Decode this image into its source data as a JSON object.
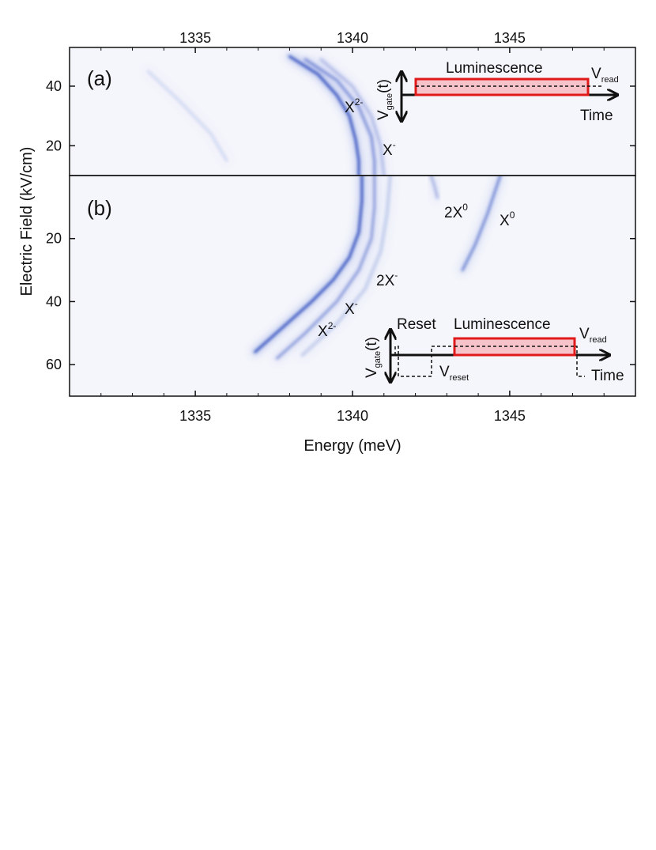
{
  "chart_data": {
    "type": "heatmap",
    "x_axis": {
      "label": "Energy (meV)",
      "range": [
        1331,
        1349
      ],
      "ticks": [
        1335,
        1340,
        1345
      ],
      "tick_labels": [
        "1335",
        "1340",
        "1345"
      ]
    },
    "y_axis": {
      "label": "Electric Field (kV/cm)"
    },
    "colormap": "white-to-blue (PL intensity)",
    "panels": [
      {
        "label": "(a)",
        "y_range": [
          10,
          53
        ],
        "y_direction": "up",
        "y_ticks": [
          20,
          40
        ],
        "y_tick_labels": [
          "20",
          "40"
        ],
        "peaks": [
          {
            "name": "X2-",
            "text": "X",
            "sup": "2-"
          },
          {
            "name": "X-",
            "text": "X",
            "sup": "-"
          }
        ],
        "streaks": [
          {
            "peak": "X2-",
            "points": [
              [
                1338.0,
                50
              ],
              [
                1338.9,
                44
              ],
              [
                1339.5,
                37
              ],
              [
                1339.9,
                30
              ],
              [
                1340.1,
                22
              ],
              [
                1340.2,
                15
              ],
              [
                1340.2,
                10
              ]
            ],
            "intensity": 0.95
          },
          {
            "peak": "X2-",
            "points": [
              [
                1338.5,
                49
              ],
              [
                1339.5,
                42
              ],
              [
                1340.2,
                33
              ],
              [
                1340.6,
                23
              ],
              [
                1340.7,
                15
              ],
              [
                1340.7,
                10
              ]
            ],
            "intensity": 0.55
          },
          {
            "peak": "X-",
            "points": [
              [
                1339.0,
                49
              ],
              [
                1340.0,
                40
              ],
              [
                1340.6,
                30
              ],
              [
                1340.9,
                20
              ],
              [
                1341.0,
                10
              ]
            ],
            "intensity": 0.3
          },
          {
            "peak": "faint",
            "points": [
              [
                1333.5,
                45
              ],
              [
                1334.5,
                35
              ],
              [
                1335.5,
                24
              ],
              [
                1336.0,
                15
              ]
            ],
            "intensity": 0.15
          }
        ],
        "inset": {
          "axis_label": "V",
          "axis_label_sub": "gate",
          "axis_label_suffix": "(t)",
          "time_label": "Time",
          "pulse_label": "Luminescence",
          "level_label": "V",
          "level_label_sub": "read"
        }
      },
      {
        "label": "(b)",
        "y_range": [
          0,
          70
        ],
        "y_direction": "down",
        "y_ticks": [
          20,
          40,
          60
        ],
        "y_tick_labels": [
          "20",
          "40",
          "60"
        ],
        "peaks": [
          {
            "name": "2X0",
            "text": "2X",
            "sup": "0"
          },
          {
            "name": "X0",
            "text": "X",
            "sup": "0"
          },
          {
            "name": "2X-",
            "text": "2X",
            "sup": "-"
          },
          {
            "name": "X-",
            "text": "X",
            "sup": "-"
          },
          {
            "name": "X2-",
            "text": "X",
            "sup": "2-"
          }
        ],
        "streaks": [
          {
            "peak": "X2-",
            "points": [
              [
                1336.9,
                56
              ],
              [
                1337.8,
                48
              ],
              [
                1338.7,
                40
              ],
              [
                1339.4,
                33
              ],
              [
                1339.9,
                26
              ],
              [
                1340.2,
                18
              ],
              [
                1340.3,
                8
              ],
              [
                1340.3,
                0
              ]
            ],
            "intensity": 0.95
          },
          {
            "peak": "X-",
            "points": [
              [
                1337.6,
                58
              ],
              [
                1338.5,
                50
              ],
              [
                1339.5,
                40
              ],
              [
                1340.2,
                30
              ],
              [
                1340.6,
                20
              ],
              [
                1340.7,
                10
              ],
              [
                1340.7,
                0
              ]
            ],
            "intensity": 0.5
          },
          {
            "peak": "2X-",
            "points": [
              [
                1338.4,
                57
              ],
              [
                1339.5,
                47
              ],
              [
                1340.4,
                36
              ],
              [
                1340.9,
                24
              ],
              [
                1341.1,
                12
              ],
              [
                1341.2,
                0
              ]
            ],
            "intensity": 0.25
          },
          {
            "peak": "X0",
            "points": [
              [
                1343.5,
                30
              ],
              [
                1343.9,
                22
              ],
              [
                1344.3,
                12
              ],
              [
                1344.6,
                3
              ],
              [
                1344.7,
                0
              ]
            ],
            "intensity": 0.6
          },
          {
            "peak": "2X0",
            "points": [
              [
                1342.7,
                7
              ],
              [
                1342.6,
                3
              ],
              [
                1342.5,
                0
              ]
            ],
            "intensity": 0.35
          }
        ],
        "inset": {
          "axis_label": "V",
          "axis_label_sub": "gate",
          "axis_label_suffix": "(t)",
          "time_label": "Time",
          "reset_label": "Reset",
          "pulse_label": "Luminescence",
          "level_label": "V",
          "level_label_sub": "read",
          "reset_level_label": "V",
          "reset_level_label_sub": "reset"
        }
      }
    ]
  }
}
